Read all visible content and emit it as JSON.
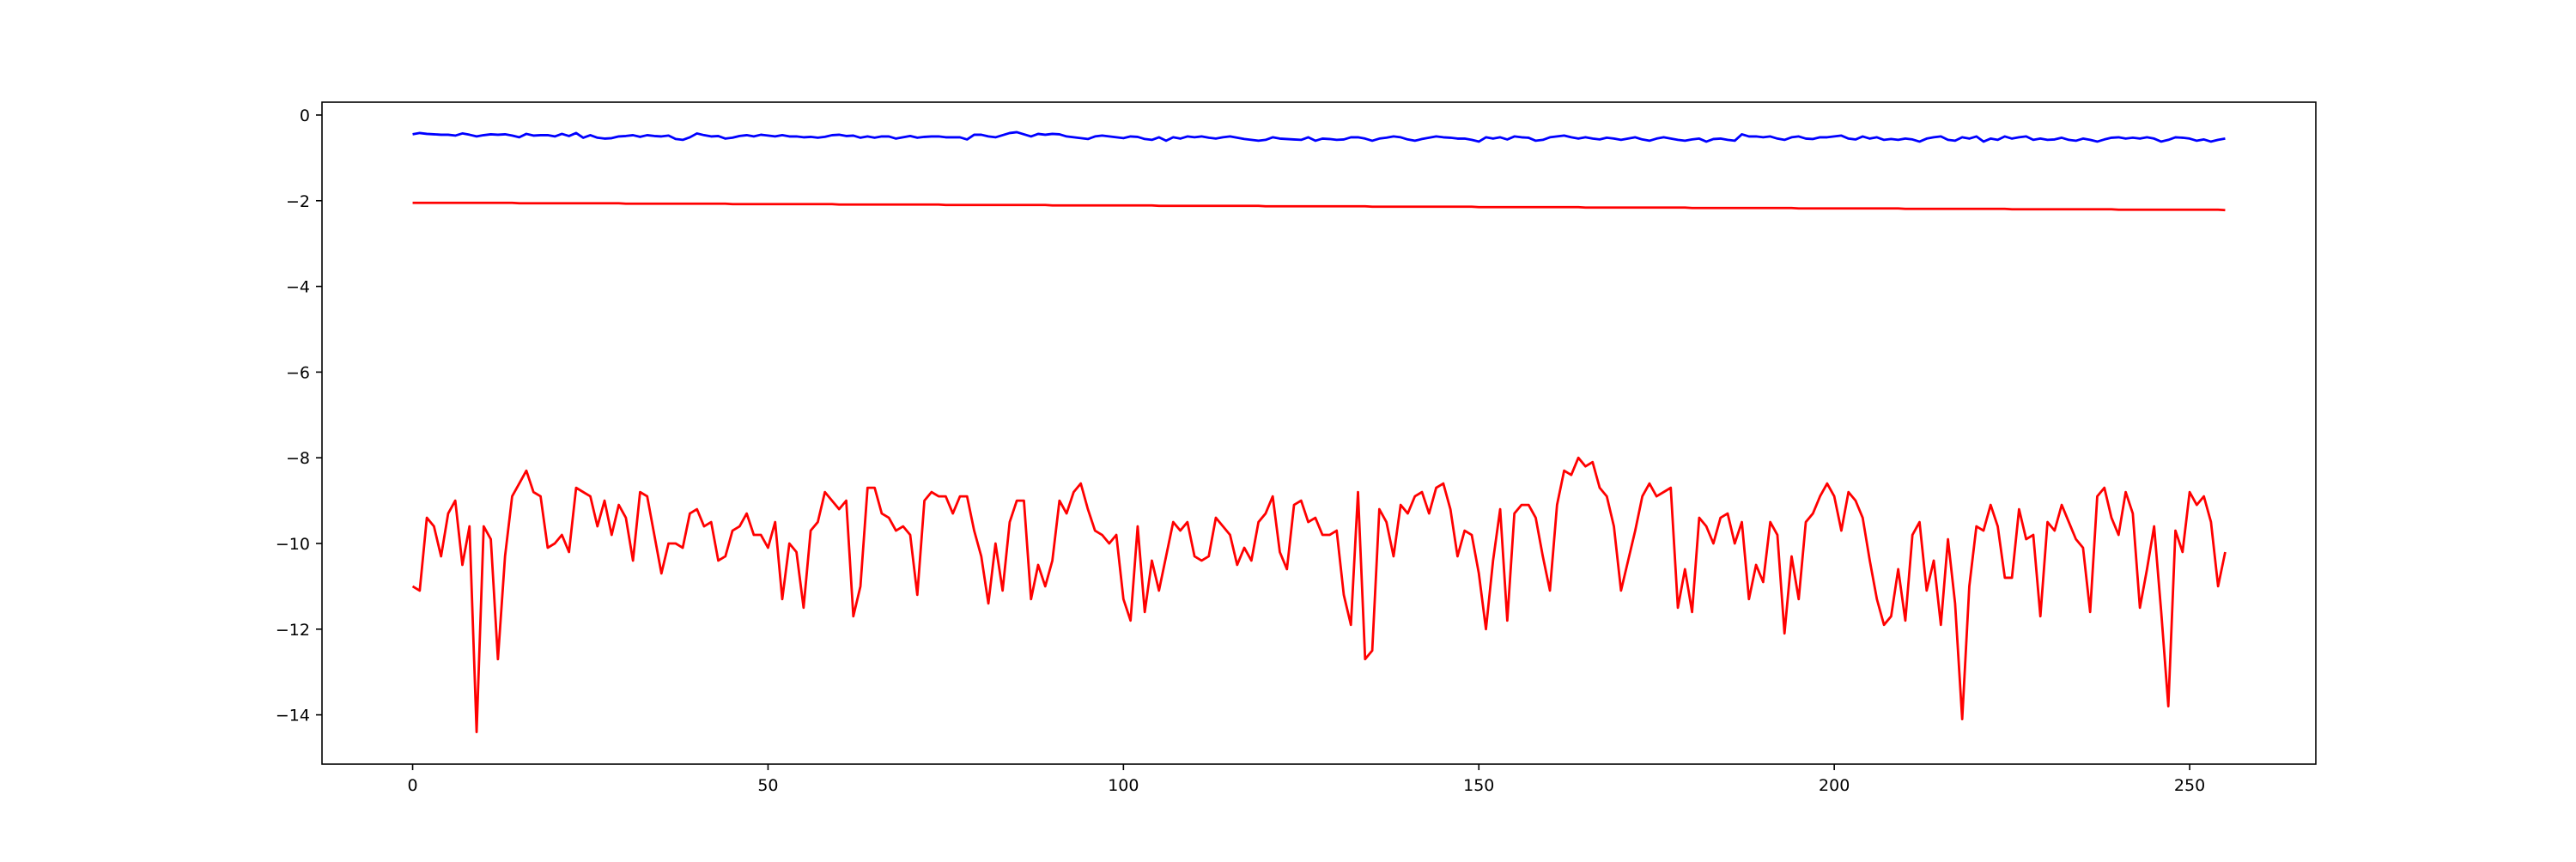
{
  "chart_data": {
    "type": "line",
    "x": [
      0,
      1,
      2,
      3,
      4,
      5,
      6,
      7,
      8,
      9,
      10,
      11,
      12,
      13,
      14,
      15,
      16,
      17,
      18,
      19,
      20,
      21,
      22,
      23,
      24,
      25,
      26,
      27,
      28,
      29,
      30,
      31,
      32,
      33,
      34,
      35,
      36,
      37,
      38,
      39,
      40,
      41,
      42,
      43,
      44,
      45,
      46,
      47,
      48,
      49,
      50,
      51,
      52,
      53,
      54,
      55,
      56,
      57,
      58,
      59,
      60,
      61,
      62,
      63,
      64,
      65,
      66,
      67,
      68,
      69,
      70,
      71,
      72,
      73,
      74,
      75,
      76,
      77,
      78,
      79,
      80,
      81,
      82,
      83,
      84,
      85,
      86,
      87,
      88,
      89,
      90,
      91,
      92,
      93,
      94,
      95,
      96,
      97,
      98,
      99,
      100,
      101,
      102,
      103,
      104,
      105,
      106,
      107,
      108,
      109,
      110,
      111,
      112,
      113,
      114,
      115,
      116,
      117,
      118,
      119,
      120,
      121,
      122,
      123,
      124,
      125,
      126,
      127,
      128,
      129,
      130,
      131,
      132,
      133,
      134,
      135,
      136,
      137,
      138,
      139,
      140,
      141,
      142,
      143,
      144,
      145,
      146,
      147,
      148,
      149,
      150,
      151,
      152,
      153,
      154,
      155,
      156,
      157,
      158,
      159,
      160,
      161,
      162,
      163,
      164,
      165,
      166,
      167,
      168,
      169,
      170,
      171,
      172,
      173,
      174,
      175,
      176,
      177,
      178,
      179,
      180,
      181,
      182,
      183,
      184,
      185,
      186,
      187,
      188,
      189,
      190,
      191,
      192,
      193,
      194,
      195,
      196,
      197,
      198,
      199,
      200,
      201,
      202,
      203,
      204,
      205,
      206,
      207,
      208,
      209,
      210,
      211,
      212,
      213,
      214,
      215,
      216,
      217,
      218,
      219,
      220,
      221,
      222,
      223,
      224,
      225,
      226,
      227,
      228,
      229,
      230,
      231,
      232,
      233,
      234,
      235,
      236,
      237,
      238,
      239,
      240,
      241,
      242,
      243,
      244,
      245,
      246,
      247,
      248,
      249,
      250,
      251,
      252,
      253,
      254,
      255
    ],
    "series": [
      {
        "color": "#0000ff",
        "values": [
          -0.45,
          -0.42,
          -0.44,
          -0.45,
          -0.46,
          -0.46,
          -0.48,
          -0.43,
          -0.46,
          -0.5,
          -0.47,
          -0.45,
          -0.46,
          -0.45,
          -0.48,
          -0.52,
          -0.44,
          -0.48,
          -0.47,
          -0.47,
          -0.5,
          -0.44,
          -0.49,
          -0.42,
          -0.53,
          -0.47,
          -0.53,
          -0.55,
          -0.54,
          -0.5,
          -0.49,
          -0.47,
          -0.51,
          -0.47,
          -0.49,
          -0.5,
          -0.48,
          -0.56,
          -0.58,
          -0.52,
          -0.43,
          -0.47,
          -0.5,
          -0.49,
          -0.55,
          -0.53,
          -0.49,
          -0.47,
          -0.5,
          -0.46,
          -0.48,
          -0.5,
          -0.47,
          -0.5,
          -0.5,
          -0.52,
          -0.51,
          -0.53,
          -0.51,
          -0.47,
          -0.46,
          -0.49,
          -0.48,
          -0.53,
          -0.5,
          -0.53,
          -0.5,
          -0.5,
          -0.55,
          -0.52,
          -0.49,
          -0.53,
          -0.51,
          -0.5,
          -0.5,
          -0.52,
          -0.52,
          -0.52,
          -0.57,
          -0.46,
          -0.46,
          -0.5,
          -0.52,
          -0.47,
          -0.42,
          -0.4,
          -0.45,
          -0.5,
          -0.44,
          -0.46,
          -0.44,
          -0.45,
          -0.5,
          -0.52,
          -0.54,
          -0.56,
          -0.5,
          -0.48,
          -0.5,
          -0.52,
          -0.54,
          -0.5,
          -0.51,
          -0.56,
          -0.58,
          -0.52,
          -0.6,
          -0.52,
          -0.55,
          -0.5,
          -0.52,
          -0.5,
          -0.53,
          -0.55,
          -0.52,
          -0.5,
          -0.53,
          -0.56,
          -0.58,
          -0.6,
          -0.58,
          -0.52,
          -0.55,
          -0.56,
          -0.57,
          -0.58,
          -0.52,
          -0.6,
          -0.55,
          -0.56,
          -0.58,
          -0.57,
          -0.52,
          -0.52,
          -0.55,
          -0.6,
          -0.55,
          -0.53,
          -0.5,
          -0.52,
          -0.57,
          -0.6,
          -0.56,
          -0.53,
          -0.5,
          -0.52,
          -0.53,
          -0.55,
          -0.55,
          -0.58,
          -0.62,
          -0.52,
          -0.55,
          -0.52,
          -0.57,
          -0.5,
          -0.52,
          -0.53,
          -0.6,
          -0.58,
          -0.52,
          -0.5,
          -0.48,
          -0.52,
          -0.55,
          -0.52,
          -0.55,
          -0.57,
          -0.53,
          -0.55,
          -0.58,
          -0.55,
          -0.52,
          -0.57,
          -0.6,
          -0.55,
          -0.52,
          -0.55,
          -0.58,
          -0.6,
          -0.57,
          -0.55,
          -0.62,
          -0.56,
          -0.55,
          -0.58,
          -0.6,
          -0.45,
          -0.5,
          -0.5,
          -0.52,
          -0.5,
          -0.55,
          -0.58,
          -0.52,
          -0.5,
          -0.55,
          -0.56,
          -0.52,
          -0.52,
          -0.5,
          -0.48,
          -0.55,
          -0.57,
          -0.5,
          -0.55,
          -0.52,
          -0.58,
          -0.56,
          -0.58,
          -0.55,
          -0.57,
          -0.62,
          -0.55,
          -0.52,
          -0.5,
          -0.58,
          -0.6,
          -0.52,
          -0.55,
          -0.5,
          -0.62,
          -0.55,
          -0.58,
          -0.5,
          -0.55,
          -0.52,
          -0.5,
          -0.58,
          -0.55,
          -0.58,
          -0.57,
          -0.53,
          -0.58,
          -0.6,
          -0.55,
          -0.58,
          -0.62,
          -0.57,
          -0.53,
          -0.52,
          -0.55,
          -0.53,
          -0.55,
          -0.52,
          -0.55,
          -0.62,
          -0.58,
          -0.52,
          -0.53,
          -0.55,
          -0.6,
          -0.57,
          -0.62,
          -0.58,
          -0.55
        ]
      },
      {
        "color": "#ff0000",
        "values": [
          -2.05,
          -2.05,
          -2.05,
          -2.05,
          -2.05,
          -2.05,
          -2.05,
          -2.05,
          -2.05,
          -2.05,
          -2.05,
          -2.05,
          -2.05,
          -2.05,
          -2.05,
          -2.06,
          -2.06,
          -2.06,
          -2.06,
          -2.06,
          -2.06,
          -2.06,
          -2.06,
          -2.06,
          -2.06,
          -2.06,
          -2.06,
          -2.06,
          -2.06,
          -2.06,
          -2.07,
          -2.07,
          -2.07,
          -2.07,
          -2.07,
          -2.07,
          -2.07,
          -2.07,
          -2.07,
          -2.07,
          -2.07,
          -2.07,
          -2.07,
          -2.07,
          -2.07,
          -2.08,
          -2.08,
          -2.08,
          -2.08,
          -2.08,
          -2.08,
          -2.08,
          -2.08,
          -2.08,
          -2.08,
          -2.08,
          -2.08,
          -2.08,
          -2.08,
          -2.08,
          -2.09,
          -2.09,
          -2.09,
          -2.09,
          -2.09,
          -2.09,
          -2.09,
          -2.09,
          -2.09,
          -2.09,
          -2.09,
          -2.09,
          -2.09,
          -2.09,
          -2.09,
          -2.1,
          -2.1,
          -2.1,
          -2.1,
          -2.1,
          -2.1,
          -2.1,
          -2.1,
          -2.1,
          -2.1,
          -2.1,
          -2.1,
          -2.1,
          -2.1,
          -2.1,
          -2.11,
          -2.11,
          -2.11,
          -2.11,
          -2.11,
          -2.11,
          -2.11,
          -2.11,
          -2.11,
          -2.11,
          -2.11,
          -2.11,
          -2.11,
          -2.11,
          -2.11,
          -2.12,
          -2.12,
          -2.12,
          -2.12,
          -2.12,
          -2.12,
          -2.12,
          -2.12,
          -2.12,
          -2.12,
          -2.12,
          -2.12,
          -2.12,
          -2.12,
          -2.12,
          -2.13,
          -2.13,
          -2.13,
          -2.13,
          -2.13,
          -2.13,
          -2.13,
          -2.13,
          -2.13,
          -2.13,
          -2.13,
          -2.13,
          -2.13,
          -2.13,
          -2.13,
          -2.14,
          -2.14,
          -2.14,
          -2.14,
          -2.14,
          -2.14,
          -2.14,
          -2.14,
          -2.14,
          -2.14,
          -2.14,
          -2.14,
          -2.14,
          -2.14,
          -2.14,
          -2.15,
          -2.15,
          -2.15,
          -2.15,
          -2.15,
          -2.15,
          -2.15,
          -2.15,
          -2.15,
          -2.15,
          -2.15,
          -2.15,
          -2.15,
          -2.15,
          -2.15,
          -2.16,
          -2.16,
          -2.16,
          -2.16,
          -2.16,
          -2.16,
          -2.16,
          -2.16,
          -2.16,
          -2.16,
          -2.16,
          -2.16,
          -2.16,
          -2.16,
          -2.16,
          -2.17,
          -2.17,
          -2.17,
          -2.17,
          -2.17,
          -2.17,
          -2.17,
          -2.17,
          -2.17,
          -2.17,
          -2.17,
          -2.17,
          -2.17,
          -2.17,
          -2.17,
          -2.18,
          -2.18,
          -2.18,
          -2.18,
          -2.18,
          -2.18,
          -2.18,
          -2.18,
          -2.18,
          -2.18,
          -2.18,
          -2.18,
          -2.18,
          -2.18,
          -2.18,
          -2.19,
          -2.19,
          -2.19,
          -2.19,
          -2.19,
          -2.19,
          -2.19,
          -2.19,
          -2.19,
          -2.19,
          -2.19,
          -2.19,
          -2.19,
          -2.19,
          -2.19,
          -2.2,
          -2.2,
          -2.2,
          -2.2,
          -2.2,
          -2.2,
          -2.2,
          -2.2,
          -2.2,
          -2.2,
          -2.2,
          -2.2,
          -2.2,
          -2.2,
          -2.2,
          -2.21,
          -2.21,
          -2.21,
          -2.21,
          -2.21,
          -2.21,
          -2.21,
          -2.21,
          -2.21,
          -2.21,
          -2.21,
          -2.21,
          -2.21,
          -2.21,
          -2.21,
          -2.22
        ]
      },
      {
        "color": "#ff0000",
        "values": [
          -11.0,
          -11.1,
          -9.4,
          -9.6,
          -10.3,
          -9.3,
          -9.0,
          -10.5,
          -9.6,
          -14.4,
          -9.6,
          -9.9,
          -12.7,
          -10.3,
          -8.9,
          -8.6,
          -8.3,
          -8.8,
          -8.9,
          -10.1,
          -10.0,
          -9.8,
          -10.2,
          -8.7,
          -8.8,
          -8.9,
          -9.6,
          -9.0,
          -9.8,
          -9.1,
          -9.4,
          -10.4,
          -8.8,
          -8.9,
          -9.8,
          -10.7,
          -10.0,
          -10.0,
          -10.1,
          -9.3,
          -9.2,
          -9.6,
          -9.5,
          -10.4,
          -10.3,
          -9.7,
          -9.6,
          -9.3,
          -9.8,
          -9.8,
          -10.1,
          -9.5,
          -11.3,
          -10.0,
          -10.2,
          -11.5,
          -9.7,
          -9.5,
          -8.8,
          -9.0,
          -9.2,
          -9.0,
          -11.7,
          -11.0,
          -8.7,
          -8.7,
          -9.3,
          -9.4,
          -9.7,
          -9.6,
          -9.8,
          -11.2,
          -9.0,
          -8.8,
          -8.9,
          -8.9,
          -9.3,
          -8.9,
          -8.9,
          -9.7,
          -10.3,
          -11.4,
          -10.0,
          -11.1,
          -9.5,
          -9.0,
          -9.0,
          -11.3,
          -10.5,
          -11.0,
          -10.4,
          -9.0,
          -9.3,
          -8.8,
          -8.6,
          -9.2,
          -9.7,
          -9.8,
          -10.0,
          -9.8,
          -11.3,
          -11.8,
          -9.6,
          -11.6,
          -10.4,
          -11.1,
          -10.3,
          -9.5,
          -9.7,
          -9.5,
          -10.3,
          -10.4,
          -10.3,
          -9.4,
          -9.6,
          -9.8,
          -10.5,
          -10.1,
          -10.4,
          -9.5,
          -9.3,
          -8.9,
          -10.2,
          -10.6,
          -9.1,
          -9.0,
          -9.5,
          -9.4,
          -9.8,
          -9.8,
          -9.7,
          -11.2,
          -11.9,
          -8.8,
          -12.7,
          -12.5,
          -9.2,
          -9.5,
          -10.3,
          -9.1,
          -9.3,
          -8.9,
          -8.8,
          -9.3,
          -8.7,
          -8.6,
          -9.2,
          -10.3,
          -9.7,
          -9.8,
          -10.7,
          -12.0,
          -10.4,
          -9.2,
          -11.8,
          -9.3,
          -9.1,
          -9.1,
          -9.4,
          -10.3,
          -11.1,
          -9.1,
          -8.3,
          -8.4,
          -8.0,
          -8.2,
          -8.1,
          -8.7,
          -8.9,
          -9.6,
          -11.1,
          -10.4,
          -9.7,
          -8.9,
          -8.6,
          -8.9,
          -8.8,
          -8.7,
          -11.5,
          -10.6,
          -11.6,
          -9.4,
          -9.6,
          -10.0,
          -9.4,
          -9.3,
          -10.0,
          -9.5,
          -11.3,
          -10.5,
          -10.9,
          -9.5,
          -9.8,
          -12.1,
          -10.3,
          -11.3,
          -9.5,
          -9.3,
          -8.9,
          -8.6,
          -8.9,
          -9.7,
          -8.8,
          -9.0,
          -9.4,
          -10.4,
          -11.3,
          -11.9,
          -11.7,
          -10.6,
          -11.8,
          -9.8,
          -9.5,
          -11.1,
          -10.4,
          -11.9,
          -9.9,
          -11.4,
          -14.1,
          -11.0,
          -9.6,
          -9.7,
          -9.1,
          -9.6,
          -10.8,
          -10.8,
          -9.2,
          -9.9,
          -9.8,
          -11.7,
          -9.5,
          -9.7,
          -9.1,
          -9.5,
          -9.9,
          -10.1,
          -11.6,
          -8.9,
          -8.7,
          -9.4,
          -9.8,
          -8.8,
          -9.3,
          -11.5,
          -10.6,
          -9.6,
          -11.6,
          -13.8,
          -9.7,
          -10.2,
          -8.8,
          -9.1,
          -8.9,
          -9.5,
          -11.0,
          -10.2
        ]
      }
    ],
    "xlim": [
      -12.75,
      267.75
    ],
    "ylim": [
      -15.15,
      0.3
    ],
    "xticks": [
      0,
      50,
      100,
      150,
      200,
      250
    ],
    "yticks": [
      0,
      {
        "value": -2,
        "label": "−2"
      },
      {
        "value": -4,
        "label": "−4"
      },
      {
        "value": -6,
        "label": "−6"
      },
      {
        "value": -8,
        "label": "−8"
      },
      {
        "value": -10,
        "label": "−10"
      },
      {
        "value": -12,
        "label": "−12"
      },
      {
        "value": -14,
        "label": "−14"
      }
    ],
    "grid": false
  }
}
